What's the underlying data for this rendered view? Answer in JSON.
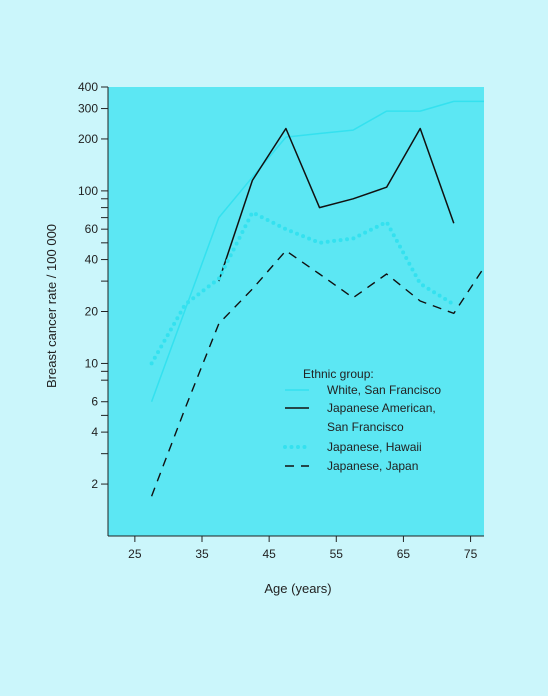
{
  "chart_data": {
    "type": "line",
    "xlabel": "Age (years)",
    "ylabel": "Breast cancer rate / 100 000",
    "x_scale": "linear",
    "y_scale": "log",
    "xlim": [
      21,
      77
    ],
    "ylim": [
      1,
      400
    ],
    "x_tick_labels": [
      "25",
      "35",
      "45",
      "55",
      "65",
      "75"
    ],
    "x_ticks": [
      25,
      35,
      45,
      55,
      65,
      75
    ],
    "y_tick_labels": [
      "2",
      "4",
      "6",
      "10",
      "20",
      "40",
      "60",
      "100",
      "200",
      "300",
      "400"
    ],
    "y_ticks": [
      2,
      4,
      6,
      10,
      20,
      40,
      60,
      100,
      200,
      300,
      400
    ],
    "y_minor_ticks": [
      3,
      5,
      8,
      9,
      30,
      50,
      70,
      80,
      90
    ],
    "grid": false,
    "legend_title": "Ethnic group:",
    "legend_position": "lower-right",
    "series": [
      {
        "name": "White, San Francisco",
        "style": "solid",
        "color": "#34e1ef",
        "x": [
          27.5,
          37.5,
          42.5,
          47.5,
          52.5,
          57.5,
          62.5,
          67.5,
          72.5,
          77
        ],
        "y": [
          6,
          70,
          120,
          205,
          215,
          225,
          290,
          290,
          330,
          330
        ]
      },
      {
        "name": "Japanese American, San Francisco",
        "name_lines": [
          "Japanese American,",
          "San Francisco"
        ],
        "style": "solid",
        "color": "#111111",
        "x": [
          37.5,
          42.5,
          47.5,
          52.5,
          57.5,
          62.5,
          67.5,
          72.5
        ],
        "y": [
          30,
          115,
          230,
          80,
          90,
          105,
          230,
          65
        ]
      },
      {
        "name": "Japanese, Hawaii",
        "style": "dotted",
        "color": "#34e1ef",
        "x": [
          27.5,
          32.5,
          37.5,
          42.5,
          47.5,
          52.5,
          57.5,
          62.5,
          67.5,
          72.5
        ],
        "y": [
          10,
          22,
          31,
          75,
          60,
          50,
          53,
          66,
          29,
          22
        ]
      },
      {
        "name": "Japanese, Japan",
        "style": "dashed",
        "color": "#111111",
        "x": [
          27.5,
          32.5,
          37.5,
          42.5,
          47.5,
          52.5,
          57.5,
          62.5,
          67.5,
          72.5,
          77
        ],
        "y": [
          1.7,
          5.5,
          17,
          27,
          45,
          33,
          24,
          33,
          23,
          19.5,
          36
        ]
      }
    ]
  }
}
